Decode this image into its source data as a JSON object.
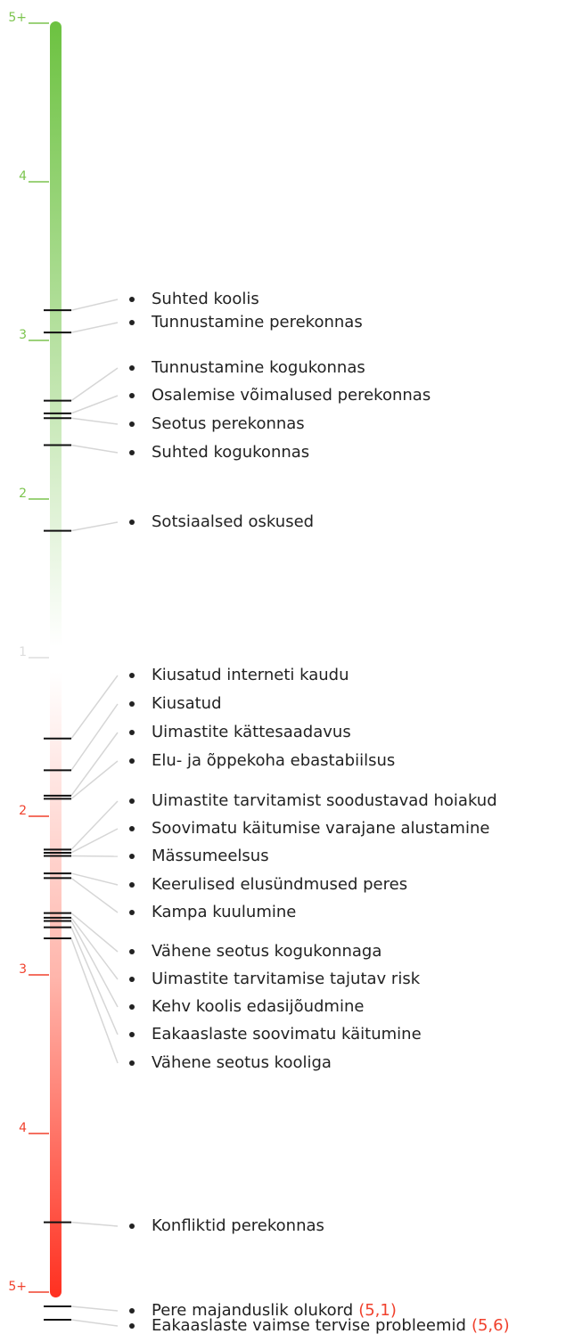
{
  "chart_data": {
    "type": "scale",
    "scales": [
      {
        "color": "#7cc44e",
        "ylim": [
          1,
          5
        ],
        "yticks": [
          {
            "value": 5,
            "label": "5+"
          },
          4,
          3,
          2,
          1
        ],
        "categories": [
          "Suhted koolis",
          "Tunnustamine perekonnas",
          "Tunnustamine kogukonnas",
          "Osalemise võimalused perekonnas",
          "Seotus perekonnas",
          "Suhted kogukonnas",
          "Sotsiaalsed oskused"
        ],
        "values": [
          3.19,
          3.05,
          2.62,
          2.54,
          2.51,
          2.34,
          1.8
        ]
      },
      {
        "color": "#f0412d",
        "ylim": [
          1,
          5
        ],
        "yticks": [
          2,
          3,
          4,
          {
            "value": 5,
            "label": "5+"
          }
        ],
        "categories": [
          "Kiusatud interneti kaudu",
          "Kiusatud",
          "Uimastite kättesaadavus",
          "Elu- ja õppekoha ebastabiilsus",
          "Uimastite tarvitamist soodustavad hoiakud",
          "Soovimatu käitumise varajane alustamine",
          "Mässumeelsus",
          "Keerulised elusündmused peres",
          "Kampa kuulumine",
          "Vähene seotus kogukonnaga",
          "Uimastite tarvitamise tajutav risk",
          "Kehv koolis edasijõudmine",
          "Eakaaslaste soovimatu käitumine",
          "Vähene seotus kooliga",
          "Konfliktid perekonnas",
          "Pere majanduslik olukord",
          "Eakaaslaste vaimse tervise probleemid"
        ],
        "values": [
          1.51,
          1.71,
          1.87,
          1.89,
          2.21,
          2.23,
          2.25,
          2.36,
          2.39,
          2.61,
          2.64,
          2.66,
          2.7,
          2.77,
          4.56,
          5.1,
          5.6
        ],
        "value_labels": [
          null,
          null,
          null,
          null,
          null,
          null,
          null,
          null,
          null,
          null,
          null,
          null,
          null,
          null,
          null,
          "(5,1)",
          "(5,6)"
        ]
      }
    ]
  }
}
